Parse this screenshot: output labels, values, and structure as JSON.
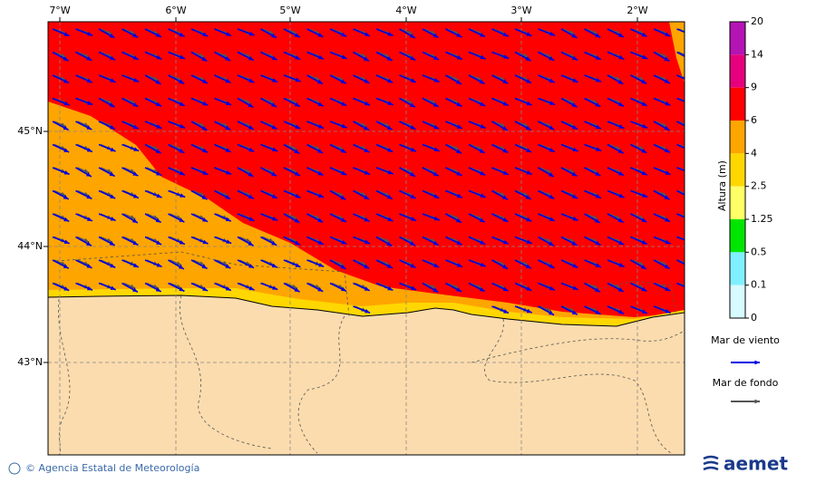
{
  "map": {
    "lon_labels": [
      "7°W",
      "6°W",
      "5°W",
      "4°W",
      "3°W",
      "2°W"
    ],
    "lat_labels": [
      "45°N",
      "44°N",
      "43°N"
    ]
  },
  "colorbar": {
    "title": "Altura (m)",
    "ticks": [
      20,
      14,
      9,
      6,
      4,
      2.5,
      1.25,
      0.5,
      0.1,
      0
    ],
    "colors": [
      "#b414b4",
      "#e6007e",
      "#ff0000",
      "#ffa500",
      "#ffd700",
      "#ffff66",
      "#00e600",
      "#80f0ff",
      "#d8fbff"
    ]
  },
  "legend": {
    "wind_sea": "Mar de viento",
    "wind_sea_color": "#0000e0",
    "swell": "Mar de fondo",
    "swell_color": "#555555"
  },
  "footer": {
    "credit": "© Agencia Estatal de Meteorología",
    "logo": "aemet"
  }
}
